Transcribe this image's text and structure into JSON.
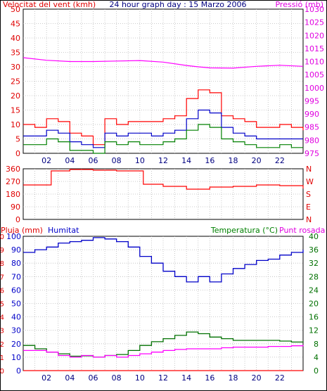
{
  "chart_data": [
    {
      "type": "line",
      "title": "24 hour graph day : 15 Marzo 2006",
      "left_label": "Velocitat del vent (kmh)",
      "right_label": "Pressió (mb)",
      "x_ticks": [
        "02",
        "04",
        "06",
        "08",
        "10",
        "12",
        "14",
        "16",
        "18",
        "20",
        "22"
      ],
      "y_ticks_left": [
        "0",
        "5",
        "10",
        "15",
        "20",
        "25",
        "30",
        "35",
        "40",
        "45",
        "50"
      ],
      "y_ticks_right": [
        "975",
        "980",
        "985",
        "990",
        "995",
        "1000",
        "1005",
        "1010",
        "1015",
        "1020",
        "1025",
        "1030"
      ],
      "ylim_left": [
        0,
        50
      ],
      "ylim_right": [
        975,
        1030
      ],
      "xlim": [
        0,
        24
      ],
      "series": [
        {
          "color": "#ff00ff",
          "axis": "right",
          "x": [
            0,
            2,
            4,
            6,
            8,
            10,
            12,
            14,
            15,
            16,
            18,
            20,
            22,
            24
          ],
          "y": [
            1011.5,
            1010.5,
            1010,
            1010,
            1010.2,
            1010.4,
            1009.8,
            1008.5,
            1008,
            1007.6,
            1007.5,
            1008.2,
            1008.6,
            1008.2
          ]
        },
        {
          "color": "#ff0000",
          "axis": "left",
          "x": [
            0,
            1,
            2,
            3,
            4,
            5,
            6,
            7,
            8,
            9,
            10,
            11,
            12,
            13,
            14,
            15,
            16,
            17,
            18,
            19,
            20,
            21,
            22,
            23,
            24
          ],
          "y": [
            10,
            9,
            12,
            11,
            7,
            6,
            3,
            12,
            10,
            11,
            11,
            11,
            12,
            13,
            19,
            22,
            21,
            13,
            12,
            11,
            9,
            9,
            10,
            9,
            8
          ]
        },
        {
          "color": "#0000c8",
          "axis": "left",
          "x": [
            0,
            1,
            2,
            3,
            4,
            5,
            6,
            7,
            8,
            9,
            10,
            11,
            12,
            13,
            14,
            15,
            16,
            17,
            18,
            19,
            20,
            21,
            22,
            23,
            24
          ],
          "y": [
            6,
            6,
            8,
            7,
            4,
            3,
            2,
            7,
            6,
            7,
            7,
            6,
            7,
            8,
            12,
            15,
            14,
            9,
            7,
            6,
            5,
            5,
            5,
            5,
            5
          ]
        },
        {
          "color": "#008000",
          "axis": "left",
          "x": [
            0,
            1,
            2,
            3,
            4,
            5,
            6,
            7,
            8,
            9,
            10,
            11,
            12,
            13,
            14,
            15,
            16,
            17,
            18,
            19,
            20,
            21,
            22,
            23,
            24
          ],
          "y": [
            3,
            3,
            5,
            4,
            1,
            1,
            0,
            4,
            3,
            4,
            3,
            3,
            4,
            5,
            8,
            10,
            9,
            5,
            4,
            3,
            2,
            2,
            3,
            2,
            2
          ]
        }
      ]
    },
    {
      "type": "line",
      "title": "",
      "y_ticks_left": [
        "360",
        "270",
        "180",
        "90",
        "0"
      ],
      "y_ticks_right": [
        "N",
        "W",
        "S",
        "E",
        "N"
      ],
      "ylim_left": [
        0,
        360
      ],
      "xlim": [
        0,
        24
      ],
      "series": [
        {
          "color": "#ff0000",
          "axis": "left",
          "x": [
            0,
            2,
            2.4,
            4,
            6,
            8,
            10,
            10.3,
            12,
            14,
            16,
            18,
            20,
            22,
            24
          ],
          "y": [
            245,
            245,
            345,
            355,
            350,
            345,
            345,
            250,
            235,
            215,
            230,
            235,
            245,
            240,
            220
          ]
        }
      ]
    },
    {
      "type": "line",
      "title": "",
      "labels": {
        "pluja": "Pluja (mm)",
        "humitat": "Humitat",
        "temperatura": "Temperatura (°C)",
        "punt_rosada": "Punt rosada"
      },
      "x_ticks": [
        "02",
        "04",
        "06",
        "08",
        "10",
        "12",
        "14",
        "16",
        "18",
        "20",
        "22"
      ],
      "y_ticks_left_pluja": [
        "0",
        "1",
        "2",
        "3",
        "4",
        "5",
        "6",
        "7",
        "8",
        "9",
        "10"
      ],
      "y_ticks_left_humitat": [
        "0",
        "10",
        "20",
        "30",
        "40",
        "50",
        "60",
        "70",
        "80",
        "90",
        "100"
      ],
      "y_ticks_right": [
        "0",
        "4",
        "8",
        "12",
        "16",
        "20",
        "24",
        "28",
        "32",
        "36",
        "40"
      ],
      "ylim_left": [
        0,
        100
      ],
      "ylim_right": [
        0,
        40
      ],
      "xlim": [
        0,
        24
      ],
      "series": [
        {
          "color": "#0000c8",
          "axis": "left",
          "x": [
            0,
            1,
            2,
            3,
            4,
            5,
            6,
            7,
            8,
            9,
            10,
            11,
            12,
            13,
            14,
            15,
            16,
            17,
            18,
            19,
            20,
            21,
            22,
            23,
            24
          ],
          "y": [
            88,
            90,
            92,
            95,
            96,
            97,
            99,
            98,
            96,
            92,
            85,
            80,
            74,
            70,
            66,
            70,
            66,
            72,
            76,
            79,
            82,
            83,
            86,
            88,
            90
          ]
        },
        {
          "color": "#007000",
          "axis": "right",
          "x": [
            0,
            1,
            2,
            3,
            4,
            5,
            6,
            7,
            8,
            9,
            10,
            11,
            12,
            13,
            14,
            15,
            16,
            17,
            18,
            19,
            20,
            21,
            22,
            23,
            24
          ],
          "y": [
            7.5,
            6.5,
            5.5,
            5,
            4.3,
            4.4,
            4,
            4.5,
            4.8,
            6,
            7.5,
            8.6,
            9.5,
            10.5,
            11.5,
            11,
            10,
            9.5,
            9,
            9,
            9,
            9,
            8.8,
            8.5,
            8.4
          ]
        },
        {
          "color": "#ff00ff",
          "axis": "right",
          "x": [
            0,
            1,
            2,
            3,
            4,
            5,
            6,
            7,
            8,
            9,
            10,
            11,
            12,
            13,
            14,
            15,
            16,
            17,
            18,
            19,
            20,
            21,
            22,
            23,
            24
          ],
          "y": [
            6,
            6,
            5.5,
            4.5,
            4,
            4.5,
            4,
            4.5,
            4,
            4.5,
            5,
            5.5,
            6,
            6.3,
            6.5,
            6.5,
            6.5,
            6.8,
            7,
            7,
            7,
            7.2,
            7.2,
            7.4,
            7.6
          ]
        },
        {
          "color": "#ff0000",
          "axis": "left",
          "x": [
            0,
            24
          ],
          "y": [
            0,
            0
          ]
        }
      ]
    }
  ]
}
